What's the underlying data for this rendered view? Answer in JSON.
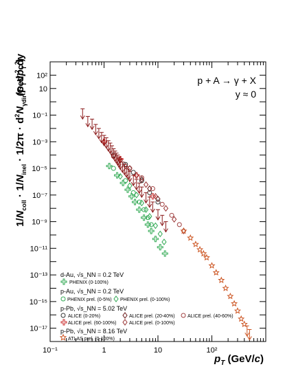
{
  "chart_data": {
    "type": "scatter",
    "title": "p + A → γ + X",
    "subtitle": "y ≈ 0",
    "xlabel": "p_T (GeV/c)",
    "ylabel": "1/N_coll · 1/N_inel · 1/2π · d²N_γdir/(p_T dp_T dy) (GeV⁻²c²)",
    "x_scale": "log",
    "y_scale": "log",
    "xlim": [
      0.1,
      1000
    ],
    "ylim": [
      1e-18,
      1000
    ],
    "x_tick_labels": [
      "10⁻¹",
      "1",
      "10",
      "10²"
    ],
    "y_tick_labels": [
      "10⁻¹⁷",
      "10⁻¹⁵",
      "10⁻¹³",
      "10⁻¹¹",
      "10⁻⁹",
      "10⁻⁷",
      "10⁻⁵",
      "10⁻³",
      "10⁻¹",
      "10",
      "10²"
    ],
    "legend_groups": [
      {
        "label": "d-Au, √s_NN = 0.2 TeV",
        "entries": [
          "PHENIX (0-100%)"
        ]
      },
      {
        "label": "p-Au, √s_NN = 0.2 TeV",
        "entries": [
          "PHENIX prel. (0-5%)",
          "PHENIX prel. (0-100%)"
        ]
      },
      {
        "label": "p-Pb, √s_NN = 5.02 TeV",
        "entries": [
          "ALICE (0-20%)",
          "ALICE prel. (20-40%)",
          "ALICE prel. (40-60%)",
          "ALICE prel. (60-100%)",
          "ALICE prel. (0-100%)"
        ]
      },
      {
        "label": "p-Pb, √s_NN = 8.16 TeV",
        "entries": [
          "ATLAS prel. (0-100%)"
        ]
      }
    ],
    "series": [
      {
        "name": "PHENIX (0-100%)",
        "marker": "cross-open",
        "color": "#33aa55",
        "x": [
          1.25,
          1.75,
          2.25,
          2.75,
          3.25,
          3.75,
          4.5,
          5.5,
          6.5,
          7.5,
          9.0,
          11.0,
          13.5
        ],
        "y": [
          1.5e-05,
          3e-06,
          8e-07,
          2.5e-07,
          8e-08,
          3e-08,
          8e-09,
          2e-09,
          6e-10,
          2e-10,
          5e-11,
          1.2e-11,
          4e-12
        ]
      },
      {
        "name": "PHENIX prel. (0-5%)",
        "marker": "circle-open",
        "color": "#33aa55",
        "x": [
          1.5,
          2.5,
          3.5,
          4.5,
          5.5,
          6.5,
          7.5
        ],
        "y": [
          1e-05,
          1.2e-06,
          1.5e-07,
          3e-08,
          8e-09,
          2e-09,
          6e-10
        ]
      },
      {
        "name": "PHENIX prel. (0-100%)",
        "marker": "diamond-open",
        "color": "#33aa55",
        "x": [
          2.0,
          3.0,
          4.0,
          5.0,
          6.0,
          7.0,
          9.0,
          11.0,
          13.0
        ],
        "y": [
          2.5e-06,
          5e-07,
          1e-07,
          2.5e-08,
          8e-09,
          2.5e-09,
          5e-10,
          1.2e-10,
          3e-11
        ]
      },
      {
        "name": "ALICE (0-20%)",
        "marker": "circle-open",
        "color": "#333333",
        "x": [
          1.5,
          2.5,
          3.5,
          5.0,
          7.0,
          10.0
        ],
        "y": [
          0.0001,
          2e-05,
          5e-06,
          1.2e-06,
          1.5e-07,
          3e-08
        ]
      },
      {
        "name": "ALICE prel. (20-40%)",
        "marker": "diamond-open",
        "color": "#6b1a1a",
        "x": [
          2.0,
          3.0,
          5.0,
          7.0,
          10.0
        ],
        "y": [
          4e-05,
          1e-05,
          1.5e-06,
          3e-07,
          5e-08
        ]
      },
      {
        "name": "ALICE prel. (40-60%)",
        "marker": "circle-open",
        "color": "#a04040",
        "x": [
          1.5,
          3.0,
          5.0,
          8.0,
          12.0,
          18.0,
          25.0
        ],
        "y": [
          8e-05,
          1e-05,
          2e-06,
          3e-07,
          2e-08,
          3e-09,
          6e-10
        ]
      },
      {
        "name": "ALICE prel. (60-100%)",
        "marker": "cross-open",
        "color": "#cc3333",
        "x": [
          1.0,
          2.0,
          4.0,
          8.0
        ],
        "y": [
          0.001,
          5e-05,
          3e-06,
          8e-08
        ]
      },
      {
        "name": "ALICE prel. (0-100%)",
        "marker": "diamond-open",
        "color": "#993333",
        "x": [
          2.5,
          4.0,
          6.0,
          9.0,
          14.0,
          20.0,
          30.0
        ],
        "y": [
          1.5e-05,
          3e-06,
          6e-07,
          8e-08,
          1e-08,
          1.5e-09,
          2e-10
        ]
      },
      {
        "name": "ATLAS prel. (0-100%)",
        "marker": "star-open",
        "color": "#cc5522",
        "x": [
          30,
          40,
          50,
          60,
          70,
          80,
          100,
          120,
          150,
          180,
          220,
          260,
          300,
          350,
          400
        ],
        "y": [
          2e-10,
          6e-11,
          2e-11,
          8e-12,
          4e-12,
          2e-12,
          5e-13,
          1.5e-13,
          4e-14,
          1e-14,
          2.5e-15,
          7e-16,
          2e-16,
          5e-17,
          2e-17
        ]
      }
    ],
    "upper_limits": {
      "name": "ALICE upper limits",
      "color": "#8b1a1a",
      "x": [
        0.4,
        0.5,
        0.6,
        0.7,
        0.8,
        0.9,
        1.0,
        1.1,
        1.2,
        1.3,
        1.4,
        1.5,
        1.6,
        1.7,
        1.8,
        1.9,
        2.0,
        2.2,
        2.4,
        2.6,
        2.8,
        3.0,
        3.5,
        4.0,
        4.5,
        5.0,
        6.0,
        7.0,
        8.0,
        10.0,
        12.0,
        14.0
      ],
      "y": [
        0.3,
        0.08,
        0.05,
        0.02,
        0.01,
        0.005,
        0.003,
        0.002,
        0.0012,
        0.0008,
        0.0005,
        0.0003,
        0.0002,
        0.00014,
        0.0001,
        7e-05,
        5e-05,
        3e-05,
        2e-05,
        1.3e-05,
        9e-06,
        6e-06,
        3e-06,
        1.5e-06,
        8e-07,
        4e-07,
        1.5e-07,
        7e-08,
        3e-08,
        8e-09,
        3e-09,
        1e-09
      ]
    },
    "atlas_upper_limits": {
      "name": "ATLAS upper limits",
      "color": "#cc5522",
      "x": [
        450,
        500
      ],
      "y": [
        1.5e-17,
        8e-18
      ]
    },
    "grid": false,
    "legend_position": "bottom-left"
  }
}
